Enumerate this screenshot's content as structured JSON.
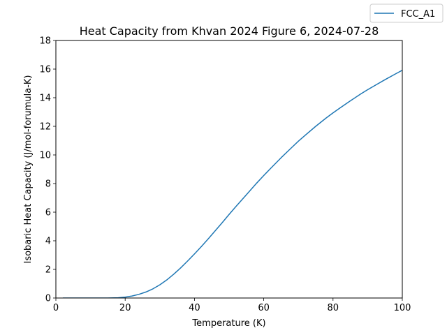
{
  "chart_data": {
    "type": "line",
    "title": "Heat Capacity from Khvan 2024 Figure 6, 2024-07-28",
    "xlabel": "Temperature (K)",
    "ylabel": "Isobaric Heat Capacity (J/mol-forumula-K)",
    "xlim": [
      0,
      100
    ],
    "ylim": [
      0,
      18
    ],
    "xticks": [
      0,
      20,
      40,
      60,
      80,
      100
    ],
    "yticks": [
      0,
      2,
      4,
      6,
      8,
      10,
      12,
      14,
      16,
      18
    ],
    "grid": false,
    "legend_position": "top-right outside plot",
    "series": [
      {
        "name": "FCC_A1",
        "color": "#1f77b4",
        "x": [
          2,
          5,
          10,
          15,
          18,
          20,
          22,
          24,
          26,
          28,
          30,
          32,
          34,
          36,
          38,
          40,
          42,
          44,
          46,
          48,
          50,
          52,
          55,
          58,
          60,
          62,
          65,
          68,
          70,
          72,
          75,
          78,
          80,
          82,
          85,
          88,
          90,
          92,
          95,
          98,
          100
        ],
        "y": [
          0.0,
          0.0,
          0.0,
          0.0,
          0.02,
          0.06,
          0.14,
          0.26,
          0.42,
          0.64,
          0.92,
          1.26,
          1.66,
          2.1,
          2.58,
          3.08,
          3.6,
          4.14,
          4.7,
          5.26,
          5.84,
          6.4,
          7.22,
          8.04,
          8.56,
          9.06,
          9.8,
          10.5,
          10.96,
          11.38,
          12.0,
          12.58,
          12.94,
          13.28,
          13.78,
          14.26,
          14.56,
          14.84,
          15.26,
          15.66,
          15.92
        ]
      }
    ]
  }
}
